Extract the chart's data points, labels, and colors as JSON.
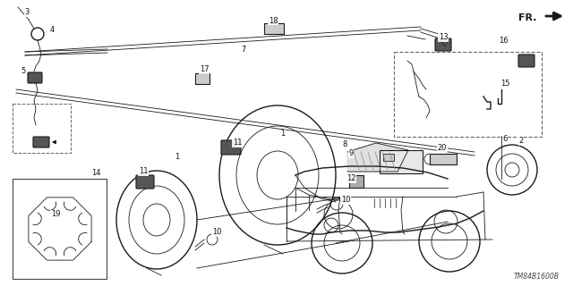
{
  "background_color": "#ffffff",
  "diagram_code": "TM84B1600B",
  "line_color": "#1a1a1a",
  "label_color": "#111111",
  "fr_label": "FR.",
  "figsize": [
    6.4,
    3.2
  ],
  "dpi": 100
}
